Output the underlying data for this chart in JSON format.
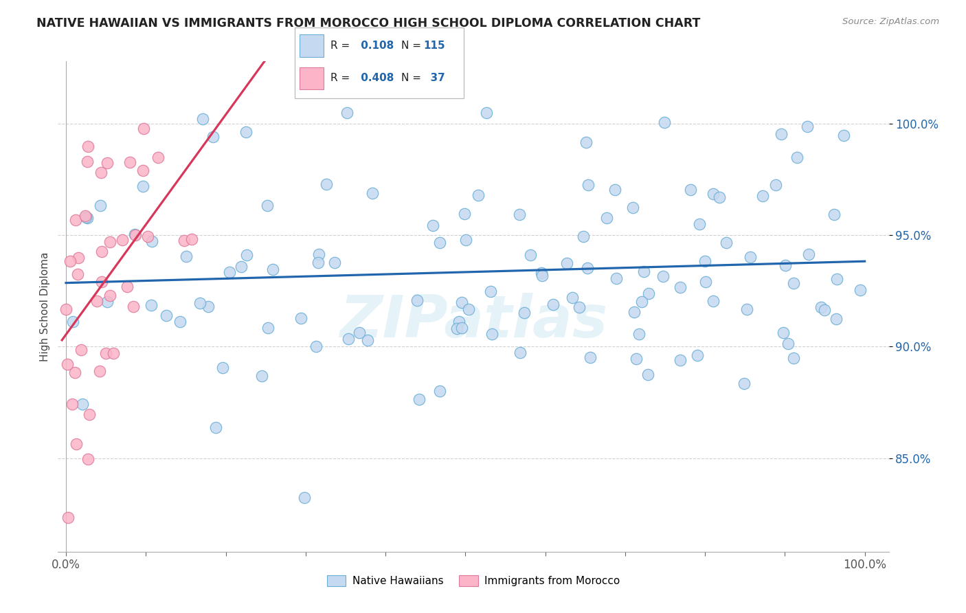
{
  "title": "NATIVE HAWAIIAN VS IMMIGRANTS FROM MOROCCO HIGH SCHOOL DIPLOMA CORRELATION CHART",
  "source": "Source: ZipAtlas.com",
  "ylabel": "High School Diploma",
  "xlim": [
    -0.01,
    1.03
  ],
  "ylim": [
    0.808,
    1.028
  ],
  "x_tick_pos": [
    0.0,
    0.1,
    0.2,
    0.3,
    0.4,
    0.5,
    0.6,
    0.7,
    0.8,
    0.9,
    1.0
  ],
  "x_tick_labels": [
    "0.0%",
    "",
    "",
    "",
    "",
    "",
    "",
    "",
    "",
    "",
    "100.0%"
  ],
  "y_tick_pos": [
    0.85,
    0.9,
    0.95,
    1.0
  ],
  "y_tick_labels": [
    "85.0%",
    "90.0%",
    "95.0%",
    "100.0%"
  ],
  "r_blue": 0.108,
  "n_blue": 115,
  "r_pink": 0.408,
  "n_pink": 37,
  "blue_face": "#c5d9f0",
  "blue_edge": "#6baed6",
  "pink_face": "#fbb4c8",
  "pink_edge": "#de7a9a",
  "blue_line": "#2166ac",
  "pink_line": "#d6375a",
  "legend_label_blue": "Native Hawaiians",
  "legend_label_pink": "Immigrants from Morocco",
  "watermark": "ZIPatlas"
}
